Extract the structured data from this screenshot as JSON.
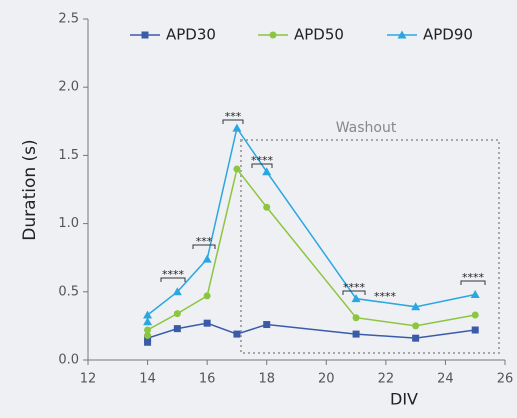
{
  "chart_data": {
    "type": "line",
    "x": [
      14,
      14,
      15,
      16,
      17,
      18,
      21,
      23,
      25
    ],
    "series": [
      {
        "name": "APD30",
        "color": "#3b5ba9",
        "marker": "square",
        "values": [
          0.13,
          0.16,
          0.23,
          0.27,
          0.19,
          0.26,
          0.19,
          0.16,
          0.22
        ]
      },
      {
        "name": "APD50",
        "color": "#8cc63f",
        "marker": "circle",
        "values": [
          0.18,
          0.22,
          0.34,
          0.47,
          1.4,
          1.12,
          0.31,
          0.25,
          0.33
        ]
      },
      {
        "name": "APD90",
        "color": "#2aa7e1",
        "marker": "triangle",
        "values": [
          0.28,
          0.33,
          0.5,
          0.74,
          1.7,
          1.38,
          0.45,
          0.39,
          0.48
        ]
      }
    ],
    "xlabel": "DIV",
    "ylabel": "Duration (s)",
    "xlim": [
      12,
      26
    ],
    "xticks": [
      12,
      14,
      16,
      18,
      20,
      22,
      24,
      26
    ],
    "ylim": [
      0,
      2.5
    ],
    "yticks": [
      {
        "value": 0,
        "label": "0.0"
      },
      0.5,
      {
        "value": 1,
        "label": "1.0"
      },
      1.5,
      {
        "value": 2,
        "label": "2.0"
      },
      2.5
    ],
    "annotations": [
      "****",
      "***",
      "***",
      "****",
      "****",
      "****",
      "****"
    ],
    "region_label": "Washout",
    "legend": "top"
  }
}
